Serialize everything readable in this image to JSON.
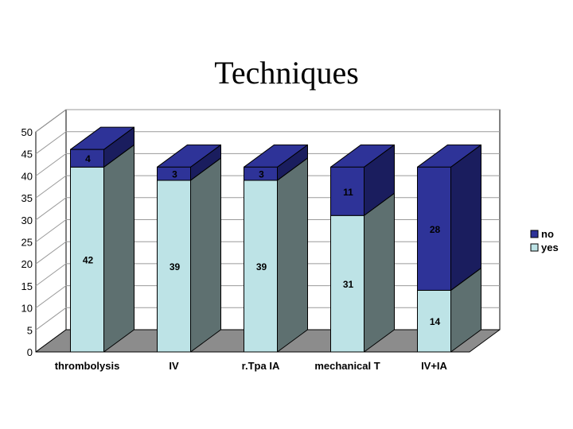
{
  "slide": {
    "title": "Techniques"
  },
  "chart_data": {
    "type": "bar",
    "stacked": true,
    "three_d": true,
    "title": "Techniques",
    "categories": [
      "thrombolysis",
      "IV",
      "r.Tpa IA",
      "mechanical T",
      "IV+IA"
    ],
    "series": [
      {
        "name": "yes",
        "values": [
          42,
          39,
          39,
          31,
          14
        ],
        "color": "#bde3e6",
        "side_color": "#5e7070"
      },
      {
        "name": "no",
        "values": [
          4,
          3,
          3,
          11,
          28
        ],
        "color": "#2e3398",
        "side_color": "#1a1d5e"
      }
    ],
    "ylim": [
      0,
      50
    ],
    "yticks": [
      "0",
      "5",
      "10",
      "15",
      "20",
      "25",
      "30",
      "35",
      "40",
      "45",
      "50"
    ],
    "grid": true,
    "legend": "right",
    "xlabel": "",
    "ylabel": ""
  }
}
